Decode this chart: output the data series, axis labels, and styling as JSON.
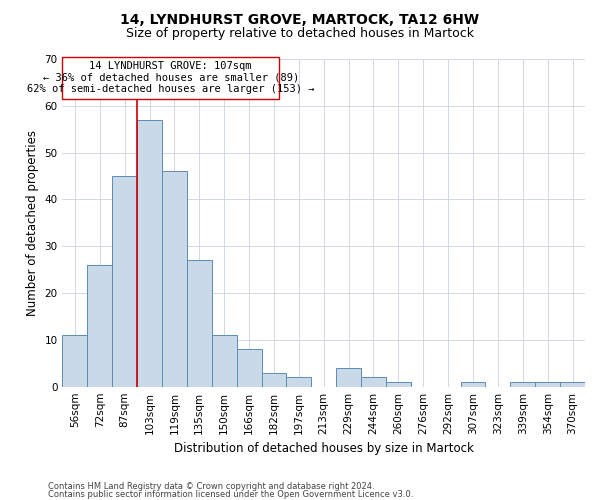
{
  "title": "14, LYNDHURST GROVE, MARTOCK, TA12 6HW",
  "subtitle": "Size of property relative to detached houses in Martock",
  "xlabel": "Distribution of detached houses by size in Martock",
  "ylabel": "Number of detached properties",
  "footer_line1": "Contains HM Land Registry data © Crown copyright and database right 2024.",
  "footer_line2": "Contains public sector information licensed under the Open Government Licence v3.0.",
  "bin_labels": [
    "56sqm",
    "72sqm",
    "87sqm",
    "103sqm",
    "119sqm",
    "135sqm",
    "150sqm",
    "166sqm",
    "182sqm",
    "197sqm",
    "213sqm",
    "229sqm",
    "244sqm",
    "260sqm",
    "276sqm",
    "292sqm",
    "307sqm",
    "323sqm",
    "339sqm",
    "354sqm",
    "370sqm"
  ],
  "bar_values": [
    11,
    26,
    45,
    57,
    46,
    27,
    11,
    8,
    3,
    2,
    0,
    4,
    2,
    1,
    0,
    0,
    1,
    0,
    1,
    1,
    1
  ],
  "bar_color": "#c9d9e8",
  "bar_edge_color": "#5b8db8",
  "vline_x": 2.5,
  "vline_color": "#cc0000",
  "annotation_box_text": "14 LYNDHURST GROVE: 107sqm\n← 36% of detached houses are smaller (89)\n62% of semi-detached houses are larger (153) →",
  "ylim": [
    0,
    70
  ],
  "yticks": [
    0,
    10,
    20,
    30,
    40,
    50,
    60,
    70
  ],
  "background_color": "#ffffff",
  "grid_color": "#d0d8e8",
  "title_fontsize": 10,
  "subtitle_fontsize": 9,
  "xlabel_fontsize": 8.5,
  "ylabel_fontsize": 8.5,
  "annotation_fontsize": 7.5,
  "tick_fontsize": 7.5,
  "footer_fontsize": 6
}
